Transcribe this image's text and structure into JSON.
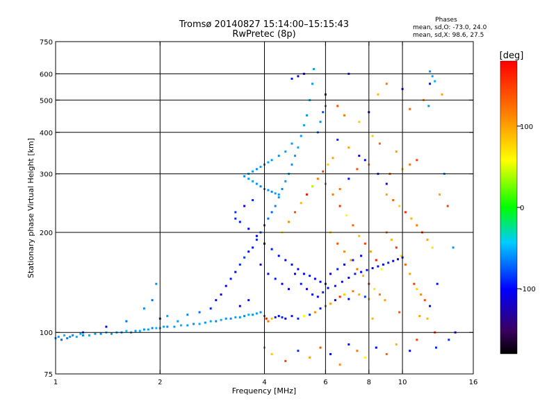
{
  "chart_data": {
    "type": "scatter",
    "title": "Tromsø 20140827 15:14:00–15:15:43",
    "subtitle": "RwPretec (8p)",
    "xlabel": "Frequency [MHz]",
    "ylabel": "Stationary phase Virtual Height [km]",
    "x_scale": "log",
    "y_scale": "log",
    "xlim": [
      1,
      16
    ],
    "ylim": [
      75,
      750
    ],
    "x_ticks": [
      "1",
      "2",
      "4",
      "6",
      "8",
      "10",
      "16"
    ],
    "y_ticks": [
      "75",
      "100",
      "200",
      "300",
      "400",
      "500",
      "600",
      "750"
    ],
    "x_grid": [
      2,
      4,
      6,
      8,
      10
    ],
    "y_grid": [
      100,
      200,
      300,
      400,
      500,
      600
    ],
    "grid": true,
    "stats": {
      "heading": "Phases",
      "line_o": "mean, sd,O: -73.0, 24.0",
      "line_x": "mean, sd,X:  98.6, 27.5"
    },
    "colorbar": {
      "label": "[deg]",
      "range": [
        -180,
        180
      ],
      "ticks": [
        "100",
        "0",
        "-100"
      ],
      "tick_values": [
        100,
        0,
        -100
      ]
    },
    "series_color_encoding": "phase in degrees",
    "points": [
      [
        1.0,
        96,
        -60
      ],
      [
        1.02,
        97,
        -55
      ],
      [
        1.04,
        95,
        -70
      ],
      [
        1.06,
        98,
        -50
      ],
      [
        1.08,
        96,
        -65
      ],
      [
        1.1,
        97,
        -58
      ],
      [
        1.12,
        98,
        -62
      ],
      [
        1.15,
        97,
        -48
      ],
      [
        1.18,
        99,
        -55
      ],
      [
        1.2,
        98,
        -60
      ],
      [
        1.25,
        98,
        -52
      ],
      [
        1.3,
        99,
        -57
      ],
      [
        1.35,
        99,
        -63
      ],
      [
        1.4,
        100,
        -50
      ],
      [
        1.45,
        99,
        -58
      ],
      [
        1.5,
        100,
        -54
      ],
      [
        1.55,
        100,
        -61
      ],
      [
        1.6,
        101,
        -47
      ],
      [
        1.65,
        100,
        -56
      ],
      [
        1.7,
        101,
        -59
      ],
      [
        1.75,
        101,
        -52
      ],
      [
        1.8,
        102,
        -60
      ],
      [
        1.85,
        102,
        -55
      ],
      [
        1.9,
        103,
        -63
      ],
      [
        1.95,
        103,
        -50
      ],
      [
        2.0,
        103,
        -58
      ],
      [
        2.05,
        104,
        -54
      ],
      [
        2.1,
        104,
        -61
      ],
      [
        2.2,
        104,
        -57
      ],
      [
        2.3,
        105,
        -49
      ],
      [
        2.4,
        105,
        -56
      ],
      [
        2.5,
        106,
        -62
      ],
      [
        2.6,
        106,
        -53
      ],
      [
        2.7,
        107,
        -59
      ],
      [
        2.8,
        108,
        -55
      ],
      [
        2.9,
        108,
        -64
      ],
      [
        3.0,
        109,
        -52
      ],
      [
        3.1,
        110,
        -58
      ],
      [
        3.2,
        110,
        -60
      ],
      [
        3.3,
        111,
        -54
      ],
      [
        3.4,
        111,
        -57
      ],
      [
        3.5,
        112,
        -63
      ],
      [
        3.6,
        113,
        -50
      ],
      [
        3.7,
        113,
        -59
      ],
      [
        3.8,
        114,
        -56
      ],
      [
        3.9,
        115,
        -61
      ],
      [
        4.0,
        112,
        150
      ],
      [
        4.05,
        110,
        170
      ],
      [
        4.1,
        108,
        120
      ],
      [
        4.2,
        110,
        90
      ],
      [
        4.3,
        111,
        -95
      ],
      [
        4.4,
        112,
        -100
      ],
      [
        4.5,
        111,
        -90
      ],
      [
        4.6,
        110,
        -105
      ],
      [
        4.8,
        112,
        -98
      ],
      [
        5.0,
        110,
        -92
      ],
      [
        5.2,
        112,
        60
      ],
      [
        5.4,
        113,
        -88
      ],
      [
        5.6,
        115,
        110
      ],
      [
        5.8,
        118,
        -95
      ],
      [
        6.0,
        120,
        140
      ],
      [
        6.2,
        122,
        100
      ],
      [
        6.4,
        125,
        -110
      ],
      [
        6.6,
        128,
        160
      ],
      [
        6.8,
        130,
        80
      ],
      [
        7.0,
        126,
        -100
      ],
      [
        7.2,
        133,
        120
      ],
      [
        7.5,
        130,
        95
      ],
      [
        7.8,
        128,
        -85
      ],
      [
        8.0,
        126,
        105
      ],
      [
        1.2,
        100,
        -90
      ],
      [
        1.4,
        104,
        -100
      ],
      [
        1.6,
        108,
        -70
      ],
      [
        1.8,
        118,
        -60
      ],
      [
        1.9,
        125,
        -70
      ],
      [
        1.95,
        140,
        -60
      ],
      [
        2.0,
        110,
        -95
      ],
      [
        2.1,
        112,
        -55
      ],
      [
        2.25,
        108,
        -58
      ],
      [
        2.4,
        113,
        -62
      ],
      [
        2.6,
        115,
        -70
      ],
      [
        2.8,
        118,
        -92
      ],
      [
        2.9,
        125,
        -100
      ],
      [
        3.0,
        130,
        -110
      ],
      [
        3.1,
        138,
        -105
      ],
      [
        3.2,
        145,
        -95
      ],
      [
        3.3,
        152,
        -100
      ],
      [
        3.4,
        160,
        -90
      ],
      [
        3.5,
        168,
        -85
      ],
      [
        3.6,
        175,
        -100
      ],
      [
        3.7,
        180,
        -95
      ],
      [
        3.8,
        190,
        -90
      ],
      [
        3.9,
        200,
        -80
      ],
      [
        4.0,
        210,
        -75
      ],
      [
        4.1,
        220,
        -70
      ],
      [
        4.2,
        230,
        -72
      ],
      [
        4.3,
        240,
        -65
      ],
      [
        4.4,
        255,
        -60
      ],
      [
        4.5,
        270,
        -62
      ],
      [
        4.6,
        285,
        -58
      ],
      [
        4.7,
        300,
        -55
      ],
      [
        4.8,
        320,
        -60
      ],
      [
        4.9,
        340,
        -57
      ],
      [
        5.0,
        360,
        -52
      ],
      [
        5.1,
        390,
        -58
      ],
      [
        5.2,
        420,
        -54
      ],
      [
        5.3,
        450,
        -60
      ],
      [
        5.4,
        500,
        -50
      ],
      [
        5.5,
        560,
        -57
      ],
      [
        5.55,
        620,
        -55
      ],
      [
        3.5,
        295,
        -62
      ],
      [
        3.6,
        290,
        -58
      ],
      [
        3.7,
        285,
        -55
      ],
      [
        3.8,
        280,
        -60
      ],
      [
        3.9,
        275,
        -65
      ],
      [
        4.0,
        270,
        -57
      ],
      [
        4.1,
        268,
        -60
      ],
      [
        4.2,
        265,
        -63
      ],
      [
        4.3,
        262,
        -55
      ],
      [
        4.4,
        260,
        -58
      ],
      [
        3.6,
        300,
        -52
      ],
      [
        3.7,
        305,
        -57
      ],
      [
        3.8,
        310,
        -60
      ],
      [
        3.9,
        315,
        -54
      ],
      [
        4.0,
        320,
        -60
      ],
      [
        4.1,
        325,
        -52
      ],
      [
        4.2,
        330,
        -57
      ],
      [
        4.4,
        340,
        -60
      ],
      [
        4.6,
        350,
        -55
      ],
      [
        4.8,
        370,
        -58
      ],
      [
        3.3,
        220,
        -90
      ],
      [
        3.4,
        215,
        -95
      ],
      [
        3.6,
        205,
        -100
      ],
      [
        3.8,
        195,
        -105
      ],
      [
        4.0,
        185,
        -110
      ],
      [
        4.2,
        178,
        -95
      ],
      [
        4.4,
        170,
        -100
      ],
      [
        4.6,
        165,
        -105
      ],
      [
        4.8,
        160,
        -98
      ],
      [
        5.0,
        155,
        -110
      ],
      [
        5.2,
        150,
        -102
      ],
      [
        5.4,
        148,
        -95
      ],
      [
        5.6,
        145,
        -105
      ],
      [
        5.8,
        142,
        -100
      ],
      [
        6.0,
        140,
        -96
      ],
      [
        6.2,
        150,
        -108
      ],
      [
        6.5,
        155,
        -92
      ],
      [
        6.8,
        160,
        -100
      ],
      [
        7.2,
        165,
        -95
      ],
      [
        7.6,
        170,
        -105
      ],
      [
        4.5,
        200,
        60
      ],
      [
        4.7,
        215,
        110
      ],
      [
        4.9,
        230,
        140
      ],
      [
        5.1,
        245,
        90
      ],
      [
        5.3,
        260,
        170
      ],
      [
        5.5,
        275,
        40
      ],
      [
        5.7,
        290,
        120
      ],
      [
        5.9,
        305,
        150
      ],
      [
        6.1,
        320,
        80
      ],
      [
        6.3,
        335,
        100
      ],
      [
        6.0,
        280,
        -20
      ],
      [
        6.3,
        260,
        120
      ],
      [
        6.6,
        240,
        160
      ],
      [
        6.9,
        225,
        60
      ],
      [
        7.2,
        210,
        130
      ],
      [
        7.5,
        195,
        90
      ],
      [
        7.8,
        185,
        150
      ],
      [
        8.1,
        175,
        100
      ],
      [
        8.4,
        165,
        170
      ],
      [
        8.7,
        155,
        60
      ],
      [
        6.2,
        200,
        80
      ],
      [
        6.5,
        185,
        140
      ],
      [
        6.8,
        175,
        110
      ],
      [
        7.1,
        165,
        100
      ],
      [
        7.4,
        155,
        120
      ],
      [
        7.7,
        148,
        90
      ],
      [
        8.0,
        140,
        160
      ],
      [
        8.3,
        135,
        70
      ],
      [
        8.6,
        130,
        120
      ],
      [
        8.9,
        125,
        100
      ],
      [
        9.0,
        200,
        120
      ],
      [
        9.3,
        190,
        90
      ],
      [
        9.6,
        180,
        160
      ],
      [
        9.9,
        170,
        70
      ],
      [
        10.2,
        160,
        130
      ],
      [
        10.5,
        150,
        100
      ],
      [
        10.8,
        140,
        150
      ],
      [
        11.0,
        135,
        80
      ],
      [
        11.3,
        130,
        110
      ],
      [
        11.6,
        125,
        140
      ],
      [
        9.0,
        260,
        100
      ],
      [
        9.4,
        250,
        130
      ],
      [
        9.8,
        240,
        80
      ],
      [
        10.2,
        230,
        160
      ],
      [
        10.6,
        220,
        90
      ],
      [
        11.0,
        210,
        120
      ],
      [
        11.4,
        200,
        150
      ],
      [
        11.8,
        190,
        100
      ],
      [
        12.2,
        180,
        70
      ],
      [
        9.2,
        300,
        140
      ],
      [
        10.0,
        310,
        90
      ],
      [
        10.5,
        320,
        120
      ],
      [
        11.0,
        330,
        150
      ],
      [
        9.6,
        350,
        100
      ],
      [
        8.6,
        370,
        130
      ],
      [
        8.2,
        390,
        80
      ],
      [
        7.8,
        330,
        -100
      ],
      [
        7.4,
        310,
        140
      ],
      [
        7.0,
        290,
        -95
      ],
      [
        6.6,
        270,
        120
      ],
      [
        5.7,
        400,
        -70
      ],
      [
        5.8,
        430,
        -60
      ],
      [
        5.9,
        460,
        -80
      ],
      [
        6.0,
        480,
        140
      ],
      [
        6.5,
        380,
        -90
      ],
      [
        7.0,
        360,
        100
      ],
      [
        7.5,
        340,
        -105
      ],
      [
        8.0,
        320,
        110
      ],
      [
        8.5,
        300,
        -90
      ],
      [
        9.0,
        280,
        -100
      ],
      [
        4.9,
        150,
        -100
      ],
      [
        5.1,
        140,
        -95
      ],
      [
        5.3,
        135,
        -108
      ],
      [
        5.5,
        130,
        -98
      ],
      [
        5.7,
        128,
        -104
      ],
      [
        5.9,
        132,
        -92
      ],
      [
        6.1,
        136,
        -100
      ],
      [
        6.4,
        138,
        -96
      ],
      [
        6.7,
        142,
        -106
      ],
      [
        7.0,
        146,
        -100
      ],
      [
        7.3,
        150,
        -94
      ],
      [
        7.6,
        152,
        -102
      ],
      [
        7.9,
        154,
        -98
      ],
      [
        8.2,
        156,
        -104
      ],
      [
        8.5,
        158,
        -96
      ],
      [
        8.8,
        160,
        -100
      ],
      [
        9.1,
        162,
        -92
      ],
      [
        9.4,
        164,
        -106
      ],
      [
        9.7,
        166,
        -100
      ],
      [
        10.0,
        168,
        -98
      ],
      [
        4.0,
        90,
        120
      ],
      [
        4.2,
        86,
        80
      ],
      [
        4.6,
        82,
        150
      ],
      [
        5.0,
        88,
        -90
      ],
      [
        5.4,
        84,
        100
      ],
      [
        5.8,
        90,
        140
      ],
      [
        6.2,
        86,
        -100
      ],
      [
        6.6,
        80,
        110
      ],
      [
        7.0,
        92,
        -95
      ],
      [
        7.4,
        88,
        120
      ],
      [
        7.8,
        84,
        60
      ],
      [
        8.4,
        90,
        -100
      ],
      [
        9.0,
        86,
        130
      ],
      [
        9.6,
        92,
        90
      ],
      [
        10.5,
        88,
        -100
      ],
      [
        11.0,
        95,
        150
      ],
      [
        12.5,
        90,
        -90
      ],
      [
        8.2,
        110,
        90
      ],
      [
        9.8,
        115,
        140
      ],
      [
        11.2,
        112,
        100
      ],
      [
        6.0,
        520,
        -100
      ],
      [
        7.0,
        600,
        -90
      ],
      [
        8.5,
        520,
        90
      ],
      [
        9.0,
        560,
        120
      ],
      [
        10.0,
        540,
        -100
      ],
      [
        11.5,
        500,
        110
      ],
      [
        12.0,
        560,
        -95
      ],
      [
        13.0,
        520,
        100
      ],
      [
        6.5,
        480,
        140
      ],
      [
        7.5,
        430,
        80
      ],
      [
        12.0,
        610,
        -60
      ],
      [
        12.2,
        590,
        -55
      ],
      [
        12.4,
        570,
        -50
      ],
      [
        11.9,
        480,
        -58
      ],
      [
        8.0,
        460,
        -100
      ],
      [
        10.5,
        470,
        130
      ],
      [
        6.8,
        450,
        120
      ],
      [
        5.0,
        590,
        -110
      ],
      [
        5.2,
        600,
        -100
      ],
      [
        4.8,
        580,
        -95
      ],
      [
        3.3,
        230,
        -85
      ],
      [
        3.5,
        240,
        -100
      ],
      [
        3.7,
        250,
        -90
      ],
      [
        3.9,
        160,
        -110
      ],
      [
        4.1,
        150,
        -100
      ],
      [
        4.3,
        145,
        -95
      ],
      [
        4.5,
        140,
        -105
      ],
      [
        4.7,
        135,
        -100
      ],
      [
        3.4,
        120,
        -110
      ],
      [
        3.6,
        125,
        -100
      ],
      [
        14.0,
        180,
        -60
      ],
      [
        13.5,
        240,
        150
      ],
      [
        12.8,
        260,
        100
      ],
      [
        13.2,
        300,
        -60
      ],
      [
        12.6,
        140,
        -95
      ],
      [
        12.0,
        120,
        -100
      ],
      [
        11.8,
        110,
        90
      ],
      [
        12.4,
        100,
        150
      ],
      [
        13.6,
        95,
        -90
      ],
      [
        14.2,
        100,
        -100
      ]
    ]
  }
}
